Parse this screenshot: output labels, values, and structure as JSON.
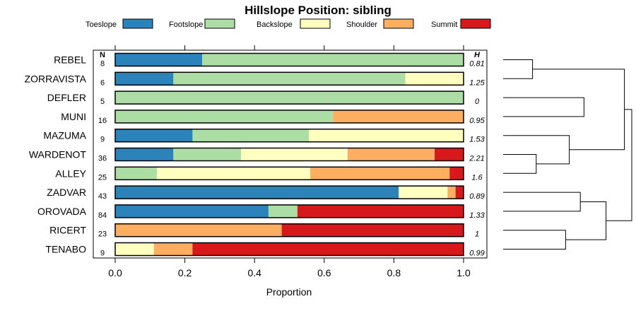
{
  "chart_data": {
    "type": "stacked-bar-horizontal",
    "title": "Hillslope Position: sibling",
    "xlabel": "Proportion",
    "ylabel": "",
    "xlim": [
      0,
      1
    ],
    "x_ticks": [
      "0.0",
      "0.2",
      "0.4",
      "0.6",
      "0.8",
      "1.0"
    ],
    "n_header": "N",
    "h_header": "H",
    "legend": [
      {
        "name": "Toeslope",
        "color": "#2b83ba"
      },
      {
        "name": "Footslope",
        "color": "#abdda4"
      },
      {
        "name": "Backslope",
        "color": "#ffffbf"
      },
      {
        "name": "Shoulder",
        "color": "#fdae61"
      },
      {
        "name": "Summit",
        "color": "#d7191c"
      }
    ],
    "rows": [
      {
        "name": "REBEL",
        "n": "8",
        "h": "0.81",
        "values": [
          0.25,
          0.75,
          0,
          0,
          0
        ]
      },
      {
        "name": "ZORRAVISTA",
        "n": "6",
        "h": "1.25",
        "values": [
          0.167,
          0.666,
          0.167,
          0,
          0
        ]
      },
      {
        "name": "DEFLER",
        "n": "5",
        "h": "0",
        "values": [
          0,
          1.0,
          0,
          0,
          0
        ]
      },
      {
        "name": "MUNI",
        "n": "16",
        "h": "0.95",
        "values": [
          0,
          0.625,
          0,
          0.375,
          0
        ]
      },
      {
        "name": "MAZUMA",
        "n": "9",
        "h": "1.53",
        "values": [
          0.222,
          0.334,
          0.444,
          0,
          0
        ]
      },
      {
        "name": "WARDENOT",
        "n": "36",
        "h": "2.21",
        "values": [
          0.167,
          0.194,
          0.306,
          0.25,
          0.083
        ]
      },
      {
        "name": "ALLEY",
        "n": "25",
        "h": "1.6",
        "values": [
          0,
          0.12,
          0.44,
          0.4,
          0.04
        ]
      },
      {
        "name": "ZADVAR",
        "n": "43",
        "h": "0.89",
        "values": [
          0.814,
          0,
          0.14,
          0.023,
          0.023
        ]
      },
      {
        "name": "OROVADA",
        "n": "84",
        "h": "1.33",
        "values": [
          0.44,
          0.083,
          0,
          0,
          0.477
        ]
      },
      {
        "name": "RICERT",
        "n": "23",
        "h": "1",
        "values": [
          0,
          0,
          0,
          0.478,
          0.522
        ]
      },
      {
        "name": "TENABO",
        "n": "9",
        "h": "0.99",
        "values": [
          0,
          0,
          0.111,
          0.111,
          0.778
        ]
      }
    ],
    "dendrogram": {
      "merges": [
        {
          "a": 0,
          "b": 1,
          "height": 0.8
        },
        {
          "a": 2,
          "b": 3,
          "height": 2.2
        },
        {
          "a": 5,
          "b": 6,
          "height": 0.9
        },
        {
          "a": 4,
          "b": 5,
          "height": 1.8
        },
        {
          "a": 1,
          "b": 4,
          "height": 3.3
        },
        {
          "a": 7,
          "b": 8,
          "height": 2.1
        },
        {
          "a": 9,
          "b": 10,
          "height": 1.7
        },
        {
          "a": 7,
          "b": 9,
          "height": 2.8
        },
        {
          "a": 1,
          "b": 7,
          "height": 3.5
        }
      ]
    }
  }
}
